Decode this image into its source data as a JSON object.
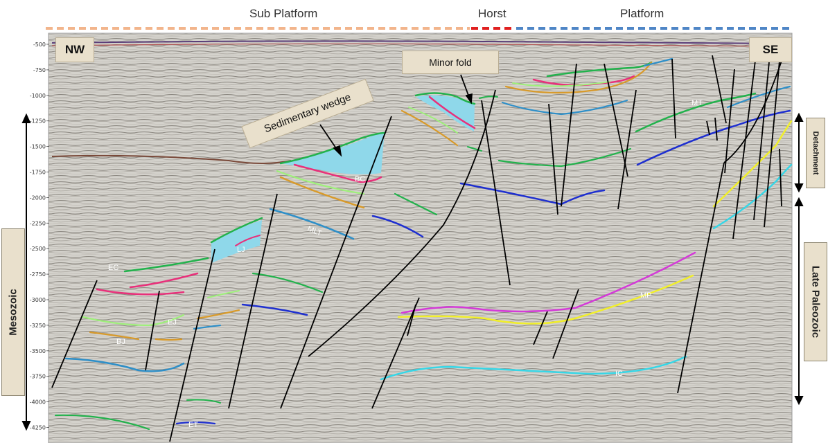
{
  "header": {
    "sub_platform": "Sub Platform",
    "horst": "Horst",
    "platform": "Platform"
  },
  "corners": {
    "left": "NW",
    "right": "SE"
  },
  "callouts": {
    "sedimentary_wedge": "Sedimentary wedge",
    "minor_fold": "Minor fold"
  },
  "side_labels": {
    "mesozoic": "Mesozoic",
    "detachment": "Detachment",
    "late_paleozoic": "Late Paleozoic"
  },
  "y_axis": {
    "ticks": [
      "-500",
      "-750",
      "-1000",
      "-1250",
      "-1500",
      "-1750",
      "-2000",
      "-2250",
      "-2500",
      "-2750",
      "-3000",
      "-3250",
      "-3500",
      "-3750",
      "-4000",
      "-4250"
    ]
  },
  "horizon_labels": {
    "BC": "BC",
    "MLT": "MLT",
    "LJ": "LJ",
    "EC": "EC",
    "EJ": "EJ",
    "BJ": "BJ",
    "ET": "ET",
    "MT": "MT",
    "MP": "MP",
    "IC": "IC"
  },
  "colors": {
    "sub_platform_bar": "#f2b58c",
    "horst_bar": "#e02020",
    "platform_bar": "#4f86c6",
    "wedge_fill": "#8fd8ea",
    "green": "#22b24c",
    "light_green": "#9ef07a",
    "pink": "#e8307a",
    "magenta": "#d43ad8",
    "orange": "#d89a2a",
    "teal_blue": "#2e8fc8",
    "dark_blue": "#1e2fd0",
    "yellow": "#f1ef2a",
    "cyan": "#36d6e6",
    "fault": "#000000"
  }
}
